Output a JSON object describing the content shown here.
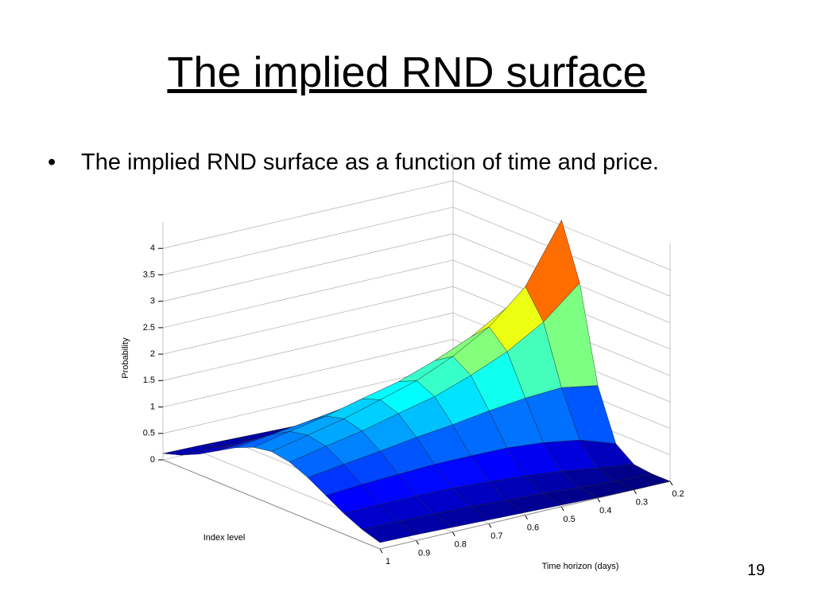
{
  "title": "The implied RND surface",
  "bullet": "The implied RND surface as a function of time and price.",
  "page_number": "19",
  "chart_data": {
    "type": "surface",
    "x_label": "Time horizon (days)",
    "y_label": "Index level",
    "z_label": "Probability",
    "x": [
      0.2,
      0.3,
      0.4,
      0.5,
      0.6,
      0.7,
      0.8,
      0.9,
      1.0
    ],
    "categories": [
      null,
      null,
      null,
      null,
      null,
      null,
      null,
      null,
      null,
      null,
      null,
      null,
      null
    ],
    "z": [
      [
        0,
        0,
        0.04,
        0.29,
        1.25,
        3.05,
        4.1,
        3.05,
        1.25,
        0.29,
        0.04,
        0,
        0
      ],
      [
        0,
        0.02,
        0.13,
        0.52,
        1.37,
        2.47,
        3.0,
        2.47,
        1.37,
        0.52,
        0.13,
        0.02,
        0
      ],
      [
        0.01,
        0.06,
        0.23,
        0.63,
        1.33,
        2.07,
        2.4,
        2.07,
        1.33,
        0.63,
        0.23,
        0.06,
        0.01
      ],
      [
        0.03,
        0.11,
        0.3,
        0.69,
        1.25,
        1.78,
        2.0,
        1.78,
        1.25,
        0.69,
        0.3,
        0.11,
        0.03
      ],
      [
        0.05,
        0.14,
        0.35,
        0.7,
        1.15,
        1.54,
        1.7,
        1.54,
        1.15,
        0.7,
        0.35,
        0.14,
        0.05
      ],
      [
        0.07,
        0.18,
        0.39,
        0.7,
        1.07,
        1.38,
        1.5,
        1.38,
        1.07,
        0.7,
        0.39,
        0.18,
        0.07
      ],
      [
        0.09,
        0.2,
        0.4,
        0.67,
        0.97,
        1.21,
        1.3,
        1.21,
        0.97,
        0.67,
        0.4,
        0.2,
        0.09
      ],
      [
        0.11,
        0.22,
        0.4,
        0.64,
        0.88,
        1.08,
        1.15,
        1.08,
        0.88,
        0.64,
        0.4,
        0.22,
        0.11
      ],
      [
        0.12,
        0.23,
        0.39,
        0.59,
        0.79,
        0.94,
        1.0,
        0.94,
        0.79,
        0.59,
        0.39,
        0.23,
        0.12
      ]
    ],
    "xticks": [
      0.2,
      0.3,
      0.4,
      0.5,
      0.6,
      0.7,
      0.8,
      0.9,
      1
    ],
    "zlim": [
      0,
      4.5
    ],
    "zticks": [
      0,
      0.5,
      1,
      1.5,
      2,
      2.5,
      3,
      3.5,
      4
    ],
    "grid": true
  }
}
